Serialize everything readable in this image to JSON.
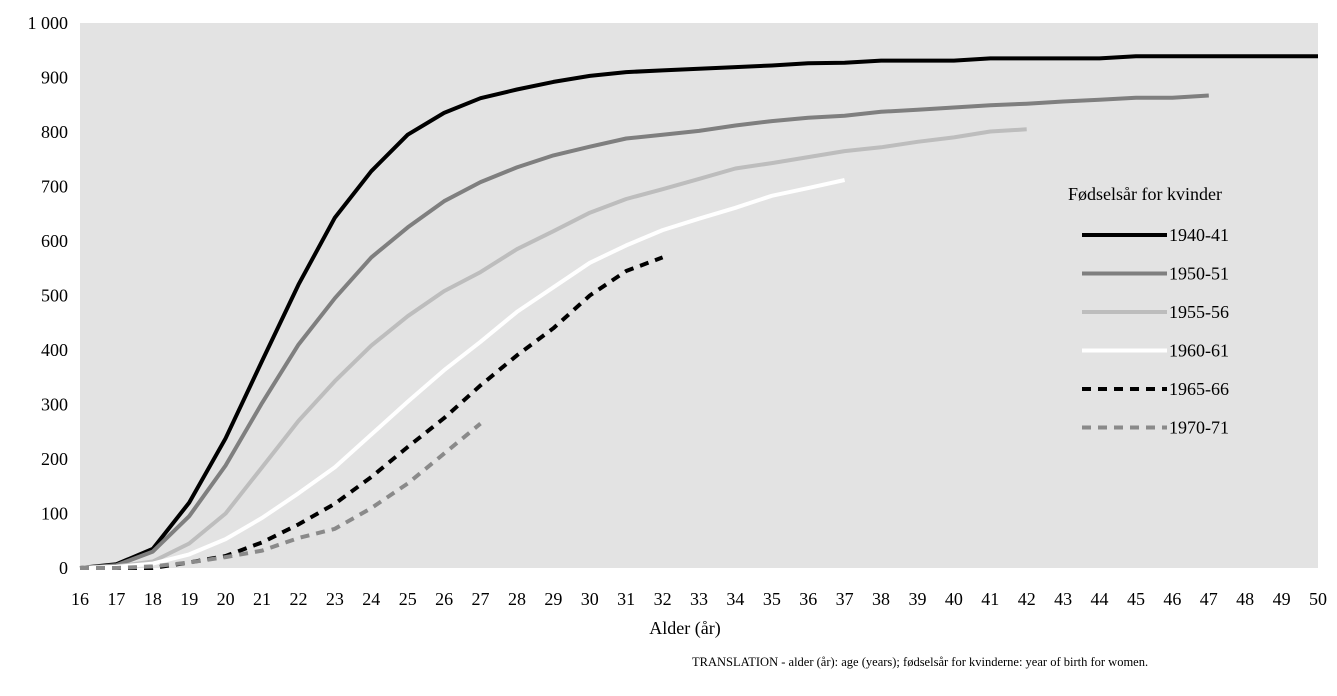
{
  "chart_data": {
    "type": "line",
    "title": "",
    "xlabel": "Alder (år)",
    "ylabel": "",
    "xlim": [
      16,
      50
    ],
    "ylim": [
      0,
      1000
    ],
    "x_ticks": [
      16,
      17,
      18,
      19,
      20,
      21,
      22,
      23,
      24,
      25,
      26,
      27,
      28,
      29,
      30,
      31,
      32,
      33,
      34,
      35,
      36,
      37,
      38,
      39,
      40,
      41,
      42,
      43,
      44,
      45,
      46,
      47,
      48,
      49,
      50
    ],
    "y_ticks": [
      0,
      100,
      200,
      300,
      400,
      500,
      600,
      700,
      800,
      900,
      1000
    ],
    "y_tick_labels": [
      "0",
      "100",
      "200",
      "300",
      "400",
      "500",
      "600",
      "700",
      "800",
      "900",
      "1 000"
    ],
    "grid": false,
    "background_color": "#e3e3e3",
    "legend": {
      "title": "Fødselsår for kvinder",
      "placement": "right"
    },
    "series": [
      {
        "name": "1940-41",
        "color": "#000000",
        "dash": "solid",
        "x": [
          16,
          17,
          18,
          19,
          20,
          21,
          22,
          23,
          24,
          25,
          26,
          27,
          28,
          29,
          30,
          31,
          32,
          33,
          34,
          35,
          36,
          37,
          38,
          39,
          40,
          41,
          42,
          43,
          44,
          45,
          46,
          47,
          48,
          49,
          50
        ],
        "y": [
          0,
          7,
          35,
          120,
          238,
          380,
          520,
          643,
          728,
          795,
          835,
          862,
          878,
          892,
          903,
          910,
          913,
          916,
          919,
          922,
          926,
          927,
          931,
          931,
          931,
          935,
          935,
          935,
          935,
          939,
          939,
          939,
          939,
          939,
          939
        ]
      },
      {
        "name": "1950-51",
        "color": "#7f7f7f",
        "dash": "solid",
        "x": [
          16,
          17,
          18,
          19,
          20,
          21,
          22,
          23,
          24,
          25,
          26,
          27,
          28,
          29,
          30,
          31,
          32,
          33,
          34,
          35,
          36,
          37,
          38,
          39,
          40,
          41,
          42,
          43,
          44,
          45,
          46,
          47
        ],
        "y": [
          0,
          5,
          30,
          95,
          188,
          303,
          410,
          495,
          570,
          625,
          673,
          708,
          735,
          757,
          773,
          788,
          795,
          802,
          812,
          820,
          826,
          830,
          837,
          841,
          845,
          849,
          852,
          856,
          859,
          863,
          863,
          867
        ]
      },
      {
        "name": "1955-56",
        "color": "#bdbdbd",
        "dash": "solid",
        "x": [
          16,
          17,
          18,
          19,
          20,
          21,
          22,
          23,
          24,
          25,
          26,
          27,
          28,
          29,
          30,
          31,
          32,
          33,
          34,
          35,
          36,
          37,
          38,
          39,
          40,
          41,
          42
        ],
        "y": [
          0,
          3,
          12,
          45,
          100,
          185,
          270,
          343,
          408,
          462,
          508,
          543,
          585,
          618,
          652,
          677,
          695,
          714,
          733,
          743,
          754,
          765,
          772,
          782,
          790,
          801,
          805
        ]
      },
      {
        "name": "1960-61",
        "color": "#ffffff",
        "dash": "solid",
        "x": [
          16,
          17,
          18,
          19,
          20,
          21,
          22,
          23,
          24,
          25,
          26,
          27,
          28,
          29,
          30,
          31,
          32,
          33,
          34,
          35,
          36,
          37
        ],
        "y": [
          0,
          2,
          8,
          25,
          53,
          92,
          137,
          185,
          245,
          305,
          363,
          415,
          470,
          515,
          560,
          592,
          620,
          641,
          661,
          683,
          697,
          712
        ]
      },
      {
        "name": "1965-66",
        "color": "#000000",
        "dash": "dashed",
        "x": [
          16,
          17,
          18,
          19,
          20,
          21,
          22,
          23,
          24,
          25,
          26,
          27,
          28,
          29,
          30,
          31,
          32
        ],
        "y": [
          0,
          0,
          0,
          10,
          22,
          47,
          80,
          118,
          167,
          222,
          275,
          335,
          390,
          440,
          500,
          545,
          570
        ]
      },
      {
        "name": "1970-71",
        "color": "#8a8a8a",
        "dash": "dashed",
        "x": [
          16,
          17,
          18,
          19,
          20,
          21,
          22,
          23,
          24,
          25,
          26,
          27
        ],
        "y": [
          0,
          0,
          3,
          10,
          20,
          32,
          55,
          72,
          110,
          155,
          210,
          265
        ]
      }
    ]
  },
  "note": "TRANSLATION - alder (år): age (years); fødselsår for kvinderne: year of birth for women."
}
